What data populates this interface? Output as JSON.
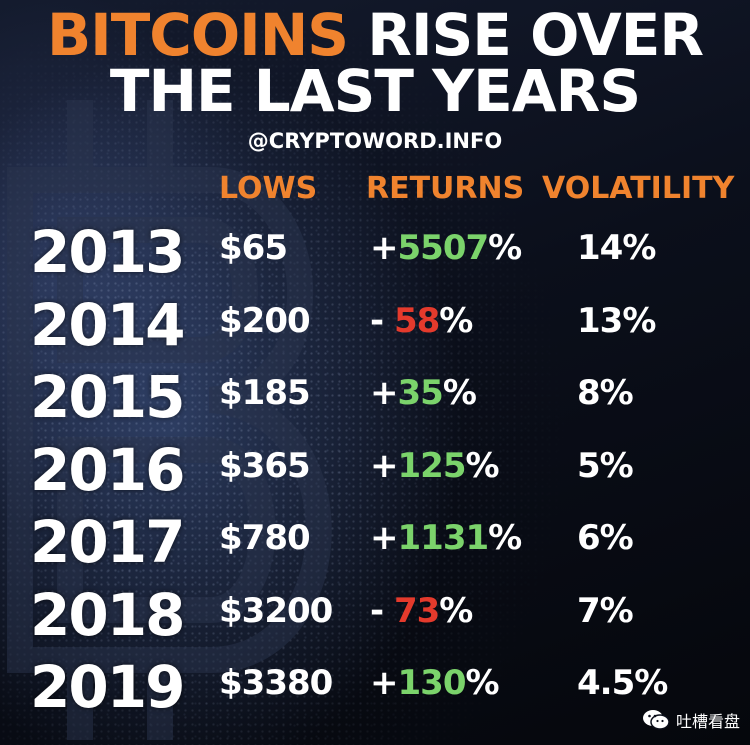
{
  "title": {
    "line1_highlight": "BITCOINS",
    "line1_rest": "RISE OVER",
    "line2": "THE LAST YEARS"
  },
  "handle": "@CRYPTOWORD.INFO",
  "headers": {
    "lows": "LOWS",
    "returns": "RETURNS",
    "volatility": "VOLATILITY"
  },
  "rows": [
    {
      "year": "2013",
      "low": "$65",
      "sign": "+",
      "ret": "5507",
      "pct": "%",
      "direction": "up",
      "vol": "14%"
    },
    {
      "year": "2014",
      "low": "$200",
      "sign": "- ",
      "ret": "58",
      "pct": "%",
      "direction": "down",
      "vol": "13%"
    },
    {
      "year": "2015",
      "low": "$185",
      "sign": "+",
      "ret": "35",
      "pct": "%",
      "direction": "up",
      "vol": "8%"
    },
    {
      "year": "2016",
      "low": "$365",
      "sign": "+",
      "ret": "125",
      "pct": "%",
      "direction": "up",
      "vol": "5%"
    },
    {
      "year": "2017",
      "low": "$780",
      "sign": "+",
      "ret": "1131",
      "pct": "%",
      "direction": "up",
      "vol": "6%"
    },
    {
      "year": "2018",
      "low": "$3200",
      "sign": "- ",
      "ret": "73",
      "pct": "%",
      "direction": "down",
      "vol": "7%"
    },
    {
      "year": "2019",
      "low": "$3380",
      "sign": "+",
      "ret": "130",
      "pct": "%",
      "direction": "up",
      "vol": "4.5%"
    }
  ],
  "watermark": {
    "label": "吐槽看盘",
    "icon": "wechat-icon"
  },
  "colors": {
    "accent_orange": "#f0832e",
    "positive_green": "#7bd36b",
    "negative_red": "#e43a2c"
  }
}
